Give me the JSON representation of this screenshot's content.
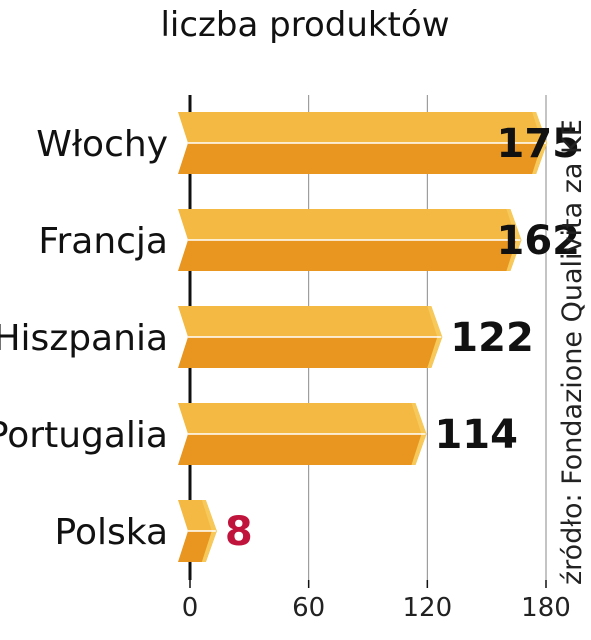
{
  "chart_data": {
    "type": "bar",
    "orientation": "horizontal",
    "title": "liczba produktów",
    "categories": [
      "Włochy",
      "Francja",
      "Hiszpania",
      "Portugalia",
      "Polska"
    ],
    "values": [
      175,
      162,
      122,
      114,
      8
    ],
    "value_labels": [
      "175",
      "162",
      "122",
      "114",
      "8"
    ],
    "xlim": [
      0,
      180
    ],
    "xticks": [
      "0",
      "60",
      "120",
      "180"
    ],
    "grid": true,
    "source": "źródło: Fondazione Qualivita za KE",
    "colors": {
      "bar_top": "#f4b942",
      "bar_bottom": "#e8961f",
      "bar_tip": "#f7c95a",
      "bar_highlight": "#ffffff",
      "value_text": "#111111",
      "highlight_value_text": "#c0143c",
      "grid": "#8a8a8a",
      "axis": "#111111"
    },
    "highlight_category": "Polska"
  }
}
